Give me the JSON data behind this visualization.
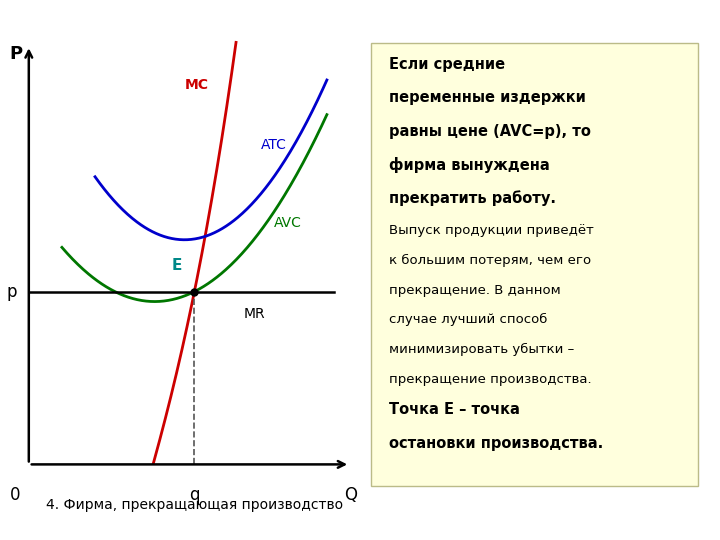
{
  "bg_color": "#ffffff",
  "chart_bg": "#ffffff",
  "text_box_bg": "#ffffdd",
  "text_box_border": "#cccc88",
  "title": "4. Фирма, прекращающая производство",
  "xlabel_Q": "Q",
  "ylabel_P": "P",
  "label_0": "0",
  "label_p": "p",
  "label_q": "q",
  "label_MC": "MC",
  "label_ATC": "ATC",
  "label_AVC": "AVC",
  "label_MR": "MR",
  "label_E": "E",
  "mc_color": "#cc0000",
  "atc_color": "#0000cc",
  "avc_color": "#007700",
  "mr_color": "#000000",
  "dashed_color": "#555555",
  "p_level": 0.4,
  "q_level": 0.5,
  "xlim": [
    0,
    1.0
  ],
  "ylim": [
    0,
    1.0
  ],
  "text_line1_bold": "Если средние",
  "text_line2_bold": "переменные издержки",
  "text_line3_bold": "равны цене (AVC=p), то",
  "text_line4_bold": "фирма вынуждена",
  "text_line5_bold": "прекратить работу.",
  "text_line6_norm": "Выпуск продукции приведёт",
  "text_line7_norm": "к большим потерям, чем его",
  "text_line8_norm": "прекращение. В данном",
  "text_line9_norm": "случае лучший способ",
  "text_line10_norm": "минимизировать убытки –",
  "text_line11_norm": "прекращение производства.",
  "text_line12_bold": "Точка E – точка",
  "text_line13_bold": "остановки производства."
}
